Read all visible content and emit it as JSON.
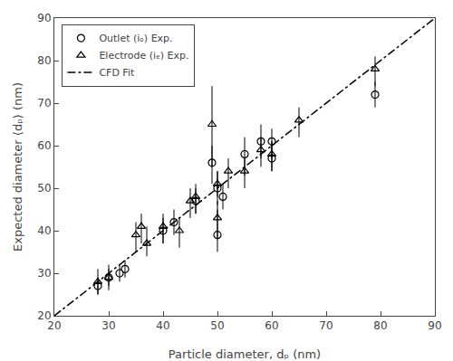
{
  "chart_data": {
    "type": "scatter",
    "xlabel": "Particle diameter, dₚ (nm)",
    "ylabel": "Expected diameter ⟨dₚ⟩ (nm)",
    "xlim": [
      20,
      90
    ],
    "ylim": [
      20,
      90
    ],
    "xticks": [
      20,
      30,
      40,
      50,
      60,
      70,
      80,
      90
    ],
    "yticks": [
      20,
      30,
      40,
      50,
      60,
      70,
      80,
      90
    ],
    "grid": false,
    "legend": "upper left",
    "series": [
      {
        "name": "Outlet (iₒ) Exp.",
        "type": "scatter",
        "marker": "circle-open",
        "color": "black",
        "x": [
          28,
          30,
          32,
          33,
          40,
          42,
          46,
          49,
          50,
          50,
          51,
          55,
          58,
          60,
          60,
          79
        ],
        "values": [
          27,
          29,
          30,
          31,
          40,
          42,
          47,
          56,
          50,
          39,
          48,
          58,
          61,
          57,
          61,
          72
        ],
        "error_lo": [
          2,
          2,
          2,
          2,
          3,
          3,
          3,
          5,
          4,
          4,
          3,
          5,
          4,
          3,
          4,
          3
        ],
        "error_hi": [
          2,
          2,
          2,
          2,
          3,
          3,
          3,
          4,
          4,
          6,
          3,
          4,
          4,
          4,
          3,
          3
        ]
      },
      {
        "name": "Electrode (iₑ) Exp.",
        "type": "scatter",
        "marker": "triangle-up-open",
        "color": "black",
        "x": [
          28,
          30,
          35,
          36,
          37,
          40,
          43,
          45,
          46,
          49,
          50,
          50,
          52,
          55,
          58,
          60,
          65,
          79
        ],
        "values": [
          28,
          29,
          39,
          41,
          37,
          41,
          40,
          47,
          48,
          65,
          51,
          43,
          54,
          54,
          59,
          58,
          66,
          78
        ],
        "error_lo": [
          3,
          3,
          4,
          4,
          3,
          4,
          4,
          4,
          4,
          10,
          3,
          5,
          4,
          4,
          4,
          4,
          4,
          4
        ],
        "error_hi": [
          3,
          3,
          3,
          3,
          4,
          3,
          3,
          3,
          3,
          9,
          3,
          4,
          3,
          3,
          3,
          3,
          3,
          3
        ]
      },
      {
        "name": "CFD Fit",
        "type": "line",
        "line_style": "dashdot",
        "color": "black",
        "x": [
          20,
          90
        ],
        "values": [
          20,
          90
        ]
      }
    ]
  }
}
